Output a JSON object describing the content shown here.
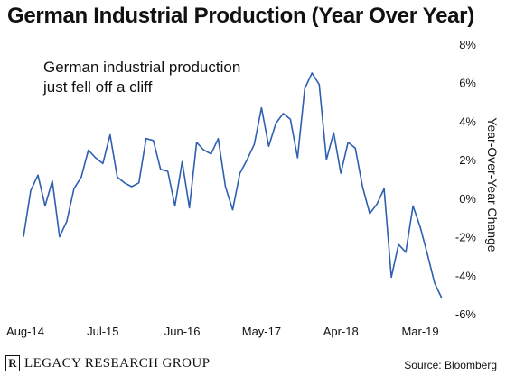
{
  "title": "German Industrial Production (Year Over Year)",
  "annotation": [
    "German industrial production",
    "just fell off a cliff"
  ],
  "source": "Source: Bloomberg",
  "logo": {
    "mark": "R",
    "text": "LEGACY RESEARCH GROUP"
  },
  "colors": {
    "line": "#2e5fb0",
    "text": "#111111"
  },
  "chart_data": {
    "type": "line",
    "title": "German Industrial Production (Year Over Year)",
    "xlabel": "",
    "ylabel": "Year-Over-Year Change",
    "y_axis_side": "right",
    "ylim": [
      -6,
      8
    ],
    "y_ticks": [
      -6,
      -4,
      -2,
      0,
      2,
      4,
      6,
      8
    ],
    "y_tick_labels": [
      "-6%",
      "-4%",
      "-2%",
      "0%",
      "2%",
      "4%",
      "6%",
      "8%"
    ],
    "x_ticks": [
      "Aug-14",
      "Jul-15",
      "Jun-16",
      "May-17",
      "Apr-18",
      "Mar-19"
    ],
    "x_tick_index": [
      0,
      11,
      22,
      33,
      44,
      55
    ],
    "grid": false,
    "series": [
      {
        "values": [
          -2.0,
          0.4,
          1.2,
          -0.4,
          0.9,
          -2.0,
          -1.2,
          0.5,
          1.1,
          2.5,
          2.1,
          1.8,
          3.3,
          1.1,
          0.8,
          0.6,
          0.8,
          3.1,
          3.0,
          1.5,
          1.4,
          -0.4,
          1.9,
          -0.5,
          2.9,
          2.5,
          2.3,
          3.1,
          0.6,
          -0.6,
          1.3,
          2.0,
          2.8,
          4.7,
          2.7,
          3.9,
          4.4,
          4.1,
          2.1,
          5.7,
          6.5,
          5.9,
          2.0,
          3.4,
          1.3,
          2.9,
          2.6,
          0.6,
          -0.8,
          -0.3,
          0.5,
          -4.1,
          -2.4,
          -2.8,
          -0.4,
          -1.5,
          -2.9,
          -4.4,
          -5.2
        ]
      }
    ]
  }
}
